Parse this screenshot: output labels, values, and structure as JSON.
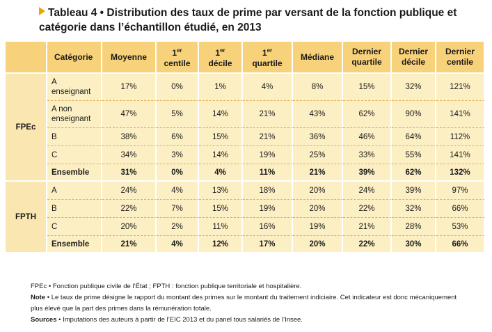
{
  "title": {
    "prefix": "Tableau 4",
    "bullet": "•",
    "text": "Distribution des taux de prime par versant de la fonction publique et catégorie dans l’échantillon étudié, en 2013"
  },
  "table": {
    "headers": {
      "categorie": "Catégorie",
      "moyenne": "Moyenne",
      "centile_num": "1",
      "centile_sup": "er",
      "centile_word": "centile",
      "decile_num": "1",
      "decile_sup": "er",
      "decile_word": "décile",
      "quartile_num": "1",
      "quartile_sup": "er",
      "quartile_word": "quartile",
      "mediane": "Médiane",
      "dernier_quartile": [
        "Dernier",
        "quartile"
      ],
      "dernier_decile": [
        "Dernier",
        "décile"
      ],
      "dernier_centile": [
        "Dernier",
        "centile"
      ]
    },
    "groups": [
      {
        "name": "FPEc",
        "rows": [
          {
            "label": [
              "A",
              "enseignant"
            ],
            "values": [
              "17%",
              "0%",
              "1%",
              "4%",
              "8%",
              "15%",
              "32%",
              "121%"
            ]
          },
          {
            "label": [
              "A non",
              "enseignant"
            ],
            "values": [
              "47%",
              "5%",
              "14%",
              "21%",
              "43%",
              "62%",
              "90%",
              "141%"
            ]
          },
          {
            "label": [
              "B"
            ],
            "values": [
              "38%",
              "6%",
              "15%",
              "21%",
              "36%",
              "46%",
              "64%",
              "112%"
            ]
          },
          {
            "label": [
              "C"
            ],
            "values": [
              "34%",
              "3%",
              "14%",
              "19%",
              "25%",
              "33%",
              "55%",
              "141%"
            ]
          },
          {
            "label": [
              "Ensemble"
            ],
            "values": [
              "31%",
              "0%",
              "4%",
              "11%",
              "21%",
              "39%",
              "62%",
              "132%"
            ]
          }
        ]
      },
      {
        "name": "FPTH",
        "rows": [
          {
            "label": [
              "A"
            ],
            "values": [
              "24%",
              "4%",
              "13%",
              "18%",
              "20%",
              "24%",
              "39%",
              "97%"
            ]
          },
          {
            "label": [
              "B"
            ],
            "values": [
              "22%",
              "7%",
              "15%",
              "19%",
              "20%",
              "22%",
              "32%",
              "66%"
            ]
          },
          {
            "label": [
              "C"
            ],
            "values": [
              "20%",
              "2%",
              "11%",
              "16%",
              "19%",
              "21%",
              "28%",
              "53%"
            ]
          },
          {
            "label": [
              "Ensemble"
            ],
            "values": [
              "21%",
              "4%",
              "12%",
              "17%",
              "20%",
              "22%",
              "30%",
              "66%"
            ]
          }
        ]
      }
    ]
  },
  "notes": {
    "line1": "FPEc • Fonction publique civile de l’État ; FPTH : fonction publique territoriale et hospitalière.",
    "note_label": "Note",
    "note_text": " • Le taux de prime désigne le rapport du montant des primes sur le montant du traitement indiciaire. Cet indicateur est donc mécaniquement plus élevé que la part des primes dans la rémunération totale.",
    "sources_label": "Sources",
    "sources_text": " • Imputations des auteurs à partir de l’EIC 2013 et du panel tous salariés de l’Insee."
  }
}
